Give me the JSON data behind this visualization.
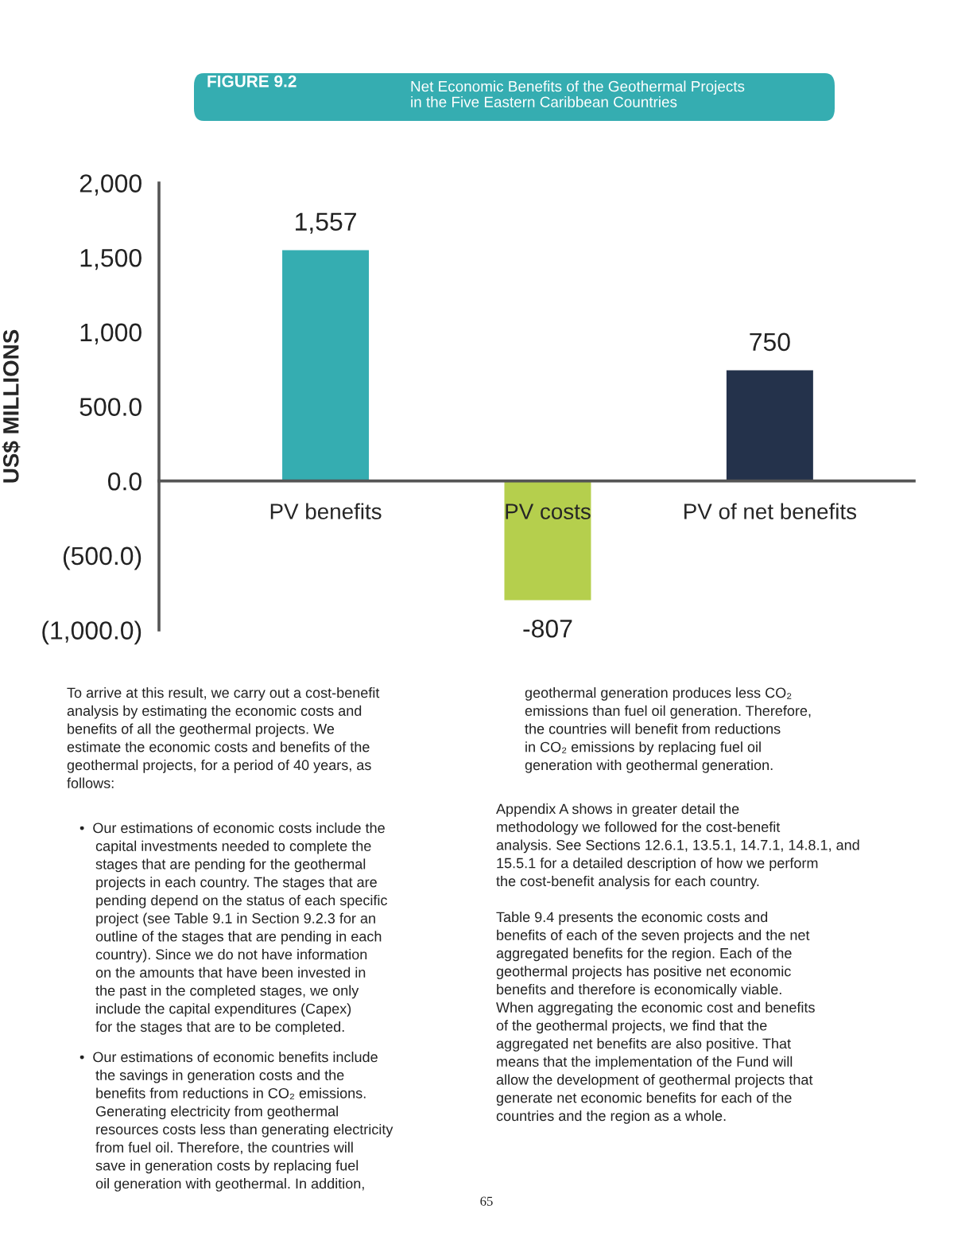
{
  "chart_data": {
    "type": "bar",
    "title": "Net Economic Benefits of the Geothermal Projects\nin the Five Eastern Caribbean Countries",
    "subtitle": "FIGURE 9.2",
    "ylabel": "US$ MILLIONS",
    "categories": [
      "PV benefits",
      "PV costs",
      "PV of net benefits"
    ],
    "values": [
      1557,
      -807,
      750
    ],
    "colors": [
      "#35adb1",
      "#b5cf4d",
      "#24324b"
    ],
    "value_labels": [
      "1,557",
      "-807",
      "750"
    ],
    "ylim": [
      -1000,
      2000
    ],
    "yticks": [
      {
        "value": 2000,
        "label": "2,000"
      },
      {
        "value": 1500,
        "label": "1,500"
      },
      {
        "value": 1000,
        "label": "1,000"
      },
      {
        "value": 500,
        "label": "500.0"
      },
      {
        "value": 0,
        "label": "0.0"
      },
      {
        "value": -500,
        "label": "(500.0)"
      },
      {
        "value": -1000,
        "label": "(1,000.0)"
      }
    ],
    "grid": false,
    "legend": false,
    "annotations": [
      "To arrive at this result, we carry out a cost-benefit\nanalysis by estimating the economic costs and\nbenefits of all the geothermal projects. We\nestimate the economic costs and benefits of the\ngeothermal projects, for a period of 40 years, as\nfollows:",
      "•  Our estimations of economic costs include the\n    capital investments needed to complete the\n    stages that are pending for the geothermal\n    projects in each country. The stages that are\n    pending depend on the status of each specific\n    project (see Table 9.1 in Section 9.2.3 for an\n    outline of the stages that are pending in each\n    country). Since we do not have information\n    on the amounts that have been invested in\n    the past in the completed stages, we only\n    include the capital expenditures (Capex)\n    for the stages that are to be completed.",
      "•  Our estimations of economic benefits include\n    the savings in generation costs and the\n    benefits from reductions in CO₂ emissions.\n    Generating electricity from geothermal\n    resources costs less than generating electricity\n    from fuel oil. Therefore, the countries will\n    save in generation costs by replacing fuel\n    oil generation with geothermal. In addition,",
      "geothermal generation produces less CO₂\nemissions than fuel oil generation. Therefore,\nthe countries will benefit from reductions\nin CO₂ emissions by replacing fuel oil\ngeneration with geothermal generation.",
      "Appendix A shows in greater detail the\nmethodology we followed for the cost-benefit\nanalysis. See Sections 12.6.1, 13.5.1, 14.7.1, 14.8.1, and\n15.5.1 for a detailed description of how we perform\nthe cost-benefit analysis for each country.",
      "Table 9.4 presents the economic costs and\nbenefits of each of the seven projects and the net\naggregated benefits for the region. Each of the\ngeothermal projects has positive net economic\nbenefits and therefore is economically viable.\nWhen aggregating the economic cost and benefits\nof the geothermal projects, we find that the\naggregated net benefits are also positive. That\nmeans that the implementation of the Fund will\nallow the development of geothermal projects that\ngenerate net economic benefits for each of the\ncountries and the region as a whole.",
      "65"
    ]
  }
}
